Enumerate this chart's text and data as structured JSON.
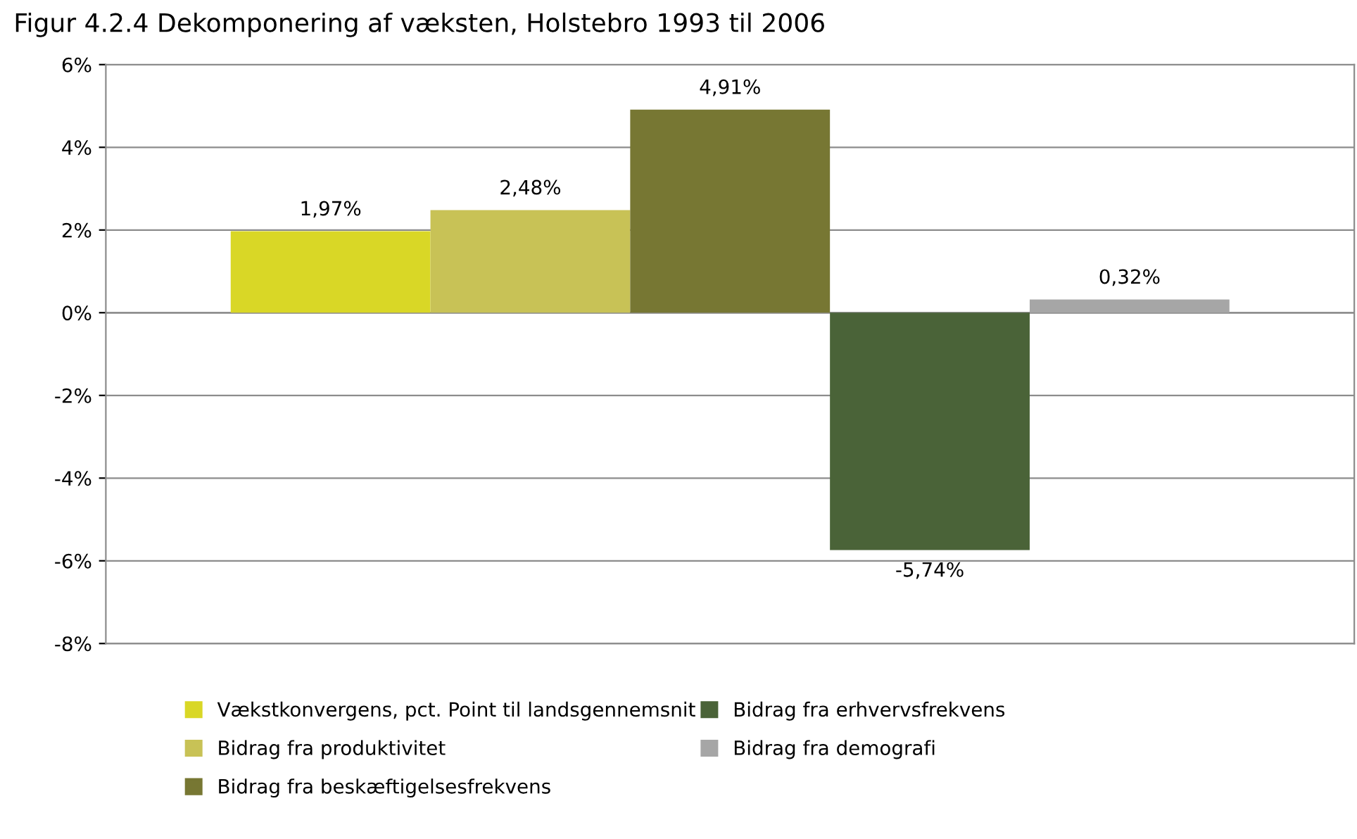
{
  "chart_data": {
    "type": "bar",
    "title": "Figur 4.2.4 Dekomponering af væksten, Holstebro 1993 til 2006",
    "categories": [
      null
    ],
    "series": [
      {
        "name": "Vækstkonvergens, pct. Point til landsgennemsnit",
        "color": "#d9d726",
        "values": [
          1.97
        ],
        "value_labels": [
          "1,97%"
        ]
      },
      {
        "name": "Bidrag fra produktivitet",
        "color": "#c8c256",
        "values": [
          2.48
        ],
        "value_labels": [
          "2,48%"
        ]
      },
      {
        "name": "Bidrag fra beskæftigelsesfrekvens",
        "color": "#777733",
        "values": [
          4.91
        ],
        "value_labels": [
          "4,91%"
        ]
      },
      {
        "name": "Bidrag fra erhvervsfrekvens",
        "color": "#4a6338",
        "values": [
          -5.74
        ],
        "value_labels": [
          "-5,74%"
        ]
      },
      {
        "name": "Bidrag fra demografi",
        "color": "#a6a6a6",
        "values": [
          0.32
        ],
        "value_labels": [
          "0,32%"
        ]
      }
    ],
    "ylim": [
      -8,
      6
    ],
    "yticks": [
      {
        "value": 6,
        "label": "6%"
      },
      {
        "value": 4,
        "label": "4%"
      },
      {
        "value": 2,
        "label": "2%"
      },
      {
        "value": 0,
        "label": "0%"
      },
      {
        "value": -2,
        "label": "-2%"
      },
      {
        "value": -4,
        "label": "-4%"
      },
      {
        "value": -6,
        "label": "-6%"
      },
      {
        "value": -8,
        "label": "-8%"
      }
    ],
    "grid": "y",
    "legend": "bottom"
  }
}
